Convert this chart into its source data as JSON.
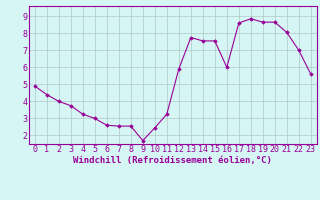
{
  "x": [
    0,
    1,
    2,
    3,
    4,
    5,
    6,
    7,
    8,
    9,
    10,
    11,
    12,
    13,
    14,
    15,
    16,
    17,
    18,
    19,
    20,
    21,
    22,
    23
  ],
  "y": [
    4.9,
    4.4,
    4.0,
    3.75,
    3.25,
    3.0,
    2.6,
    2.55,
    2.55,
    1.7,
    2.45,
    3.25,
    5.9,
    7.75,
    7.55,
    7.55,
    6.0,
    8.6,
    8.85,
    8.65,
    8.65,
    8.05,
    7.0,
    5.6
  ],
  "line_color": "#990099",
  "marker": "D",
  "marker_size": 1.8,
  "bg_color": "#d6f5f5",
  "grid_color": "#b0c8c8",
  "axis_label_color": "#990099",
  "tick_label_color": "#990099",
  "xlabel": "Windchill (Refroidissement éolien,°C)",
  "yticks": [
    2,
    3,
    4,
    5,
    6,
    7,
    8,
    9
  ],
  "ylim": [
    1.5,
    9.6
  ],
  "xlim": [
    -0.5,
    23.5
  ],
  "spine_color": "#990099",
  "xlabel_fontsize": 6.5,
  "tick_fontsize": 6.0,
  "linewidth": 0.8
}
